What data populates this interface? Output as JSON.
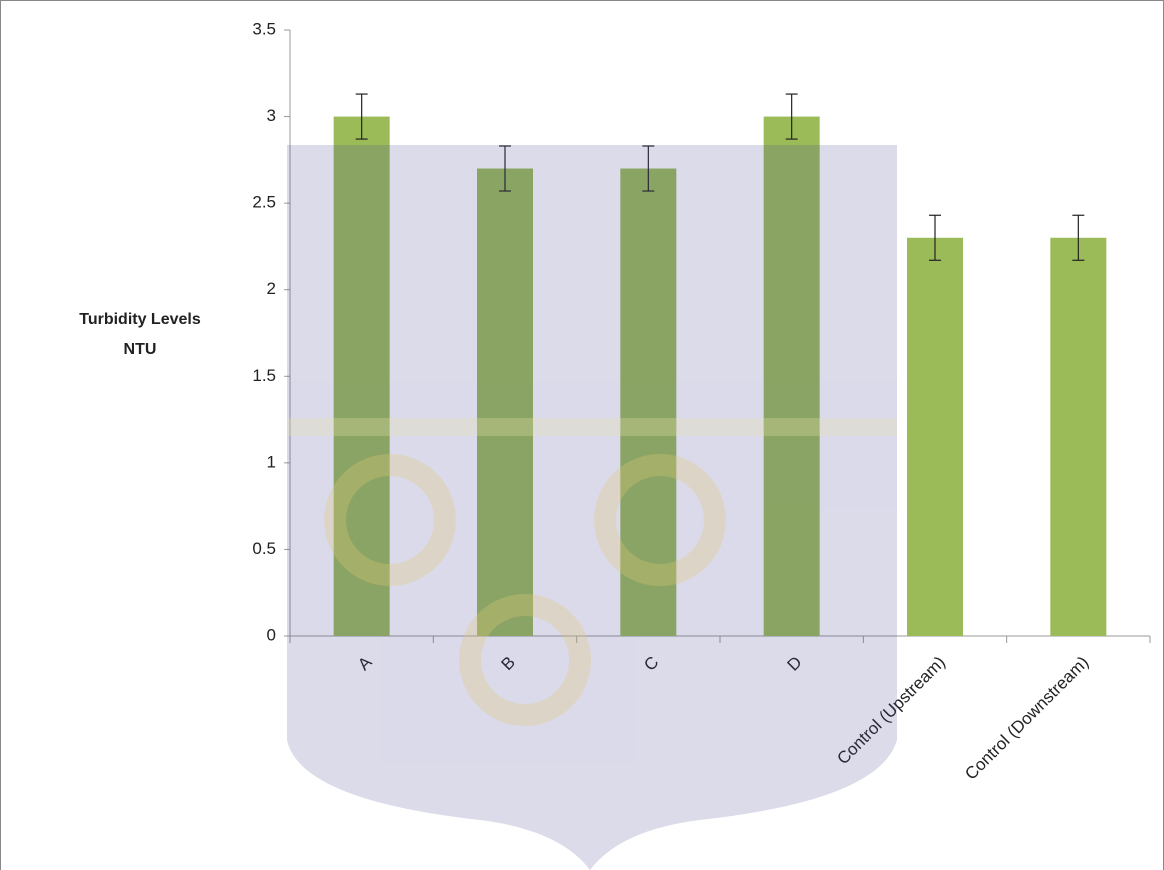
{
  "chart_data": {
    "type": "bar",
    "y_label": [
      "Turbidity Levels",
      "NTU"
    ],
    "categories": [
      "A",
      "B",
      "C",
      "D",
      "Control (Upstream)",
      "Control (Downstream)"
    ],
    "values": [
      3,
      2.7,
      2.7,
      3,
      2.3,
      2.3
    ],
    "errors": [
      0.13,
      0.13,
      0.13,
      0.13,
      0.13,
      0.13
    ],
    "color": "#9bbb59",
    "ylim": [
      0,
      3.5
    ],
    "yticks": [
      0,
      0.5,
      1,
      1.5,
      2,
      2.5,
      3,
      3.5
    ],
    "grid": false
  }
}
